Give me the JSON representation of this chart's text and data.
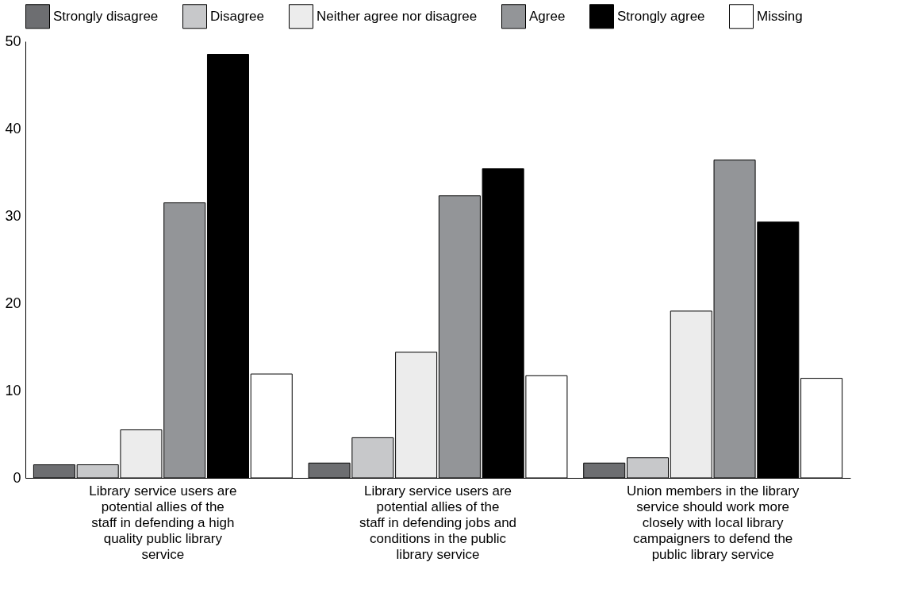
{
  "chart_data": {
    "type": "bar",
    "categories": [
      "Library service users are potential allies of the staff in defending a high quality public library service",
      "Library service users are potential allies of the staff in defending jobs and conditions in the public library service",
      "Union members in the library service should work more closely with local library campaigners to defend the public library service"
    ],
    "series": [
      {
        "name": "Strongly disagree",
        "color": "#6d6e71",
        "values": [
          1.5,
          1.7,
          1.7
        ]
      },
      {
        "name": "Disagree",
        "color": "#c7c8ca",
        "values": [
          1.5,
          4.6,
          2.3
        ]
      },
      {
        "name": "Neither agree nor disagree",
        "color": "#ececec",
        "values": [
          5.5,
          14.4,
          19.1
        ]
      },
      {
        "name": "Agree",
        "color": "#939598",
        "values": [
          31.5,
          32.3,
          36.4
        ]
      },
      {
        "name": "Strongly agree",
        "color": "#000000",
        "values": [
          48.5,
          35.4,
          29.3
        ]
      },
      {
        "name": "Missing",
        "color": "#ffffff",
        "values": [
          11.9,
          11.7,
          11.4
        ]
      }
    ],
    "ylim": [
      0,
      50
    ],
    "yticks": [
      0,
      10,
      20,
      30,
      40,
      50
    ],
    "grid": false,
    "legend": "top"
  }
}
